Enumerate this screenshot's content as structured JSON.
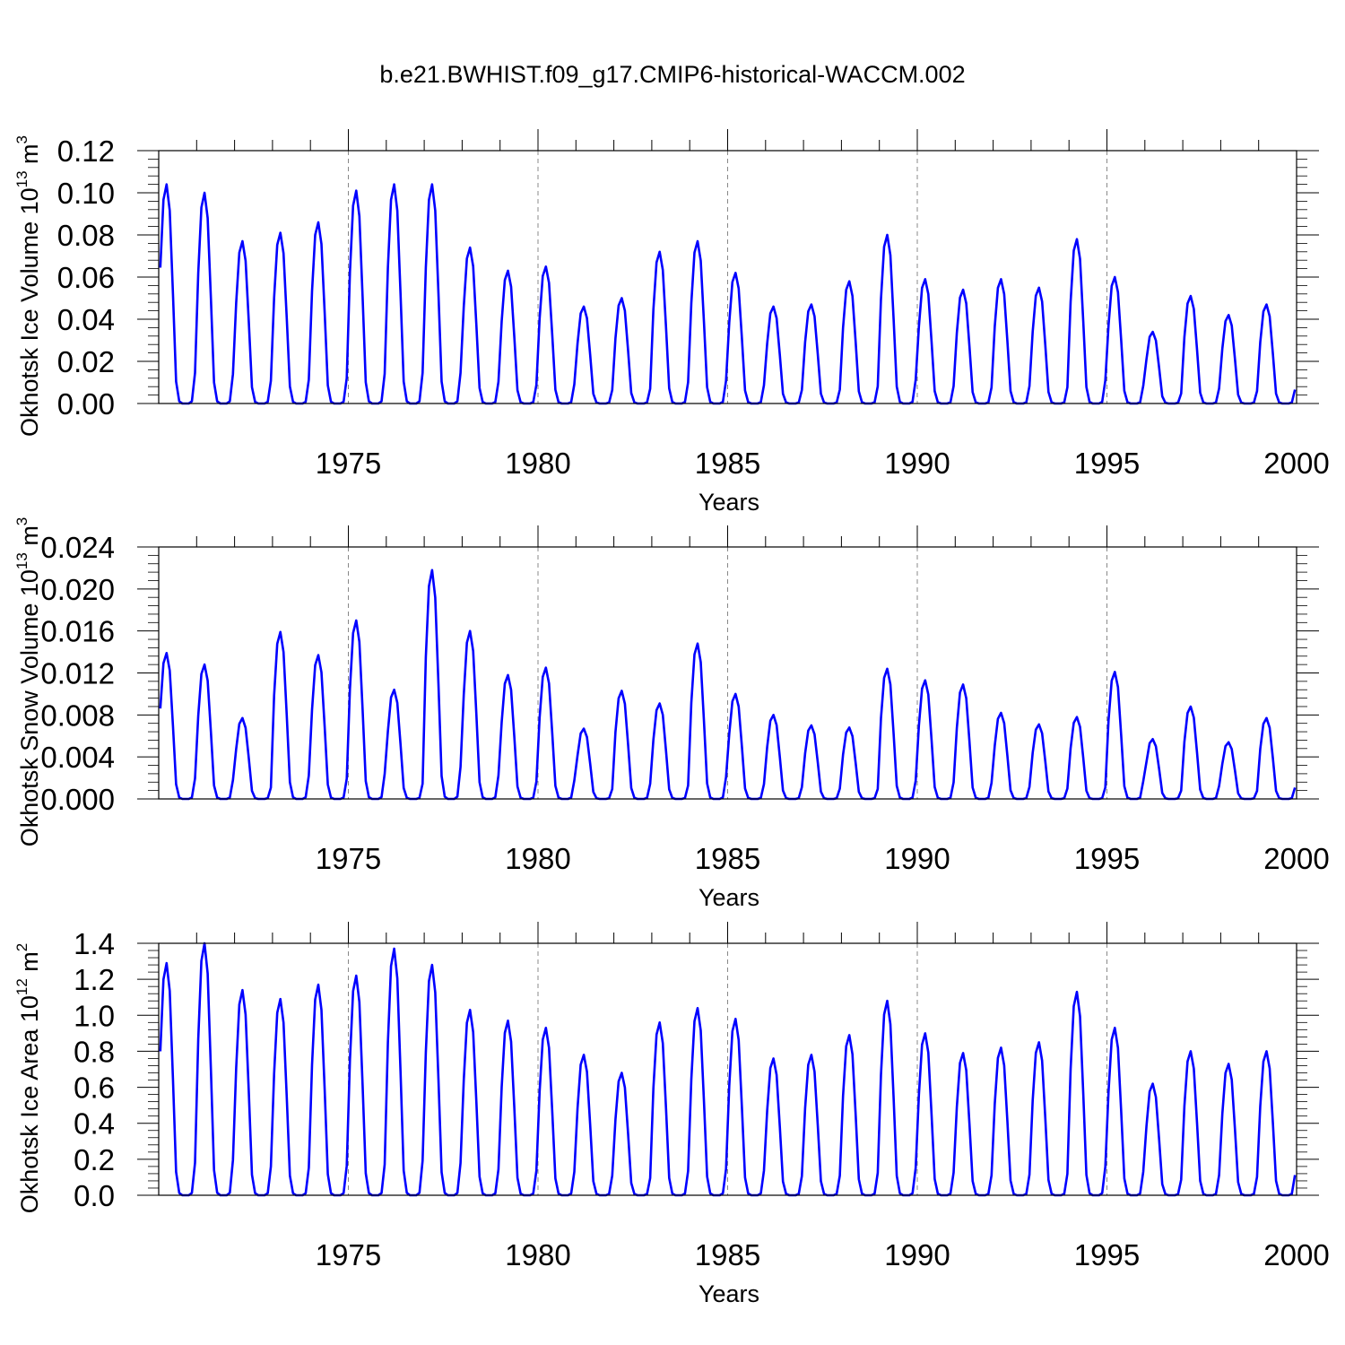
{
  "title": "b.e21.BWHIST.f09_g17.CMIP6-historical-WACCM.002",
  "chart_data": [
    {
      "type": "line",
      "ylabel": {
        "main": "Okhotsk Ice Volume 10",
        "exp": "13",
        "unit": " m",
        "unit_exp": "3"
      },
      "xlabel": "Years",
      "xlim": [
        1970,
        2000
      ],
      "xticks": [
        "1975",
        "1980",
        "1985",
        "1990",
        "1995",
        "2000"
      ],
      "ylim": [
        0,
        0.12
      ],
      "yticks": [
        "0.00",
        "0.02",
        "0.04",
        "0.06",
        "0.08",
        "0.10",
        "0.12"
      ],
      "series": [
        {
          "name": "Okhotsk Ice Volume",
          "color": "#0000ff",
          "annual_peaks": [
            0.104,
            0.1,
            0.077,
            0.081,
            0.086,
            0.101,
            0.104,
            0.104,
            0.074,
            0.063,
            0.065,
            0.046,
            0.05,
            0.072,
            0.077,
            0.062,
            0.046,
            0.047,
            0.058,
            0.08,
            0.059,
            0.054,
            0.059,
            0.055,
            0.078,
            0.06,
            0.034,
            0.051,
            0.042,
            0.047
          ]
        }
      ]
    },
    {
      "type": "line",
      "ylabel": {
        "main": "Okhotsk Snow Volume 10",
        "exp": "13",
        "unit": " m",
        "unit_exp": "3"
      },
      "xlabel": "Years",
      "xlim": [
        1970,
        2000
      ],
      "xticks": [
        "1975",
        "1980",
        "1985",
        "1990",
        "1995",
        "2000"
      ],
      "ylim": [
        0,
        0.024
      ],
      "yticks": [
        "0.000",
        "0.004",
        "0.008",
        "0.012",
        "0.016",
        "0.020",
        "0.024"
      ],
      "series": [
        {
          "name": "Okhotsk Snow Volume",
          "color": "#0000ff",
          "annual_peaks": [
            0.0139,
            0.0128,
            0.0077,
            0.0159,
            0.0137,
            0.017,
            0.0104,
            0.0218,
            0.016,
            0.0118,
            0.0125,
            0.0067,
            0.0103,
            0.0091,
            0.0148,
            0.01,
            0.008,
            0.007,
            0.0068,
            0.0124,
            0.0113,
            0.0109,
            0.0082,
            0.0071,
            0.0078,
            0.0121,
            0.0057,
            0.0088,
            0.0054,
            0.0077
          ]
        }
      ]
    },
    {
      "type": "line",
      "ylabel": {
        "main": "Okhotsk Ice Area 10",
        "exp": "12",
        "unit": " m",
        "unit_exp": "2"
      },
      "xlabel": "Years",
      "xlim": [
        1970,
        2000
      ],
      "xticks": [
        "1975",
        "1980",
        "1985",
        "1990",
        "1995",
        "2000"
      ],
      "ylim": [
        0,
        1.4
      ],
      "yticks": [
        "0.0",
        "0.2",
        "0.4",
        "0.6",
        "0.8",
        "1.0",
        "1.2",
        "1.4"
      ],
      "series": [
        {
          "name": "Okhotsk Ice Area",
          "color": "#0000ff",
          "annual_peaks": [
            1.29,
            1.4,
            1.14,
            1.09,
            1.17,
            1.22,
            1.37,
            1.28,
            1.03,
            0.97,
            0.93,
            0.78,
            0.68,
            0.96,
            1.04,
            0.98,
            0.76,
            0.78,
            0.89,
            1.08,
            0.9,
            0.79,
            0.82,
            0.85,
            1.13,
            0.93,
            0.62,
            0.8,
            0.73,
            0.8
          ]
        }
      ]
    }
  ]
}
